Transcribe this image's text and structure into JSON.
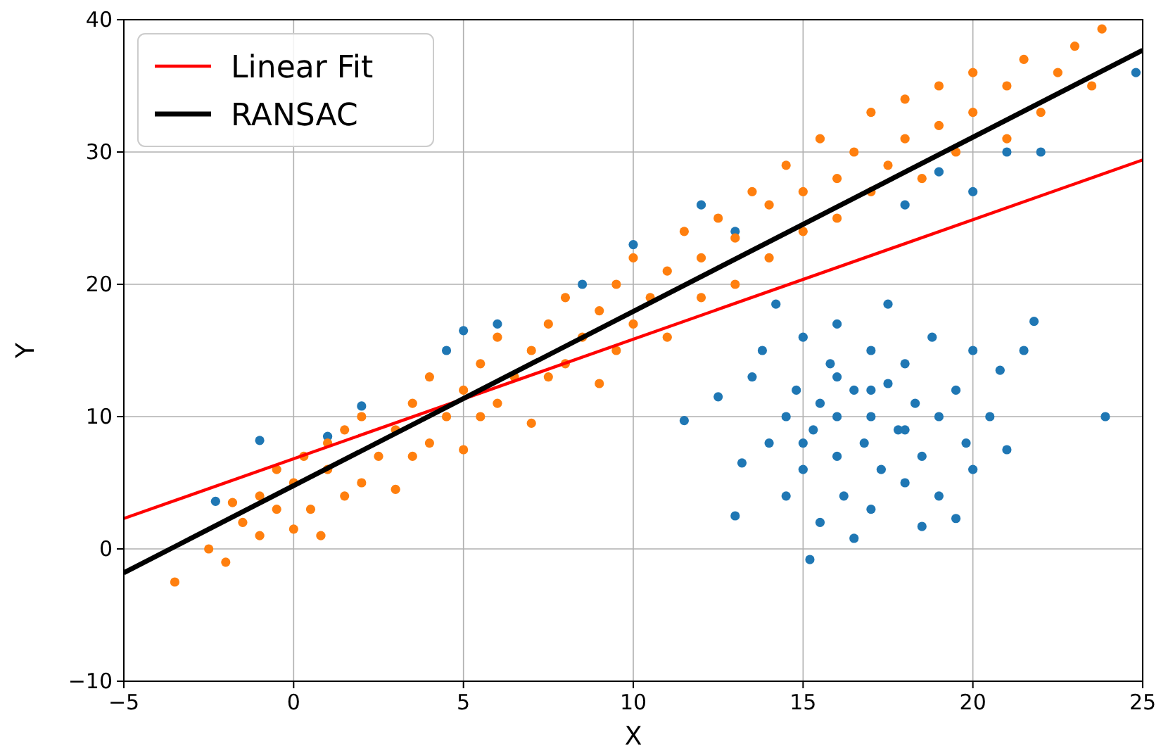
{
  "chart_data": {
    "type": "scatter",
    "xlabel": "X",
    "ylabel": "Y",
    "xlim": [
      -5,
      25
    ],
    "ylim": [
      -10,
      40
    ],
    "xticks": [
      -5,
      0,
      5,
      10,
      15,
      20,
      25
    ],
    "yticks": [
      -10,
      0,
      10,
      20,
      30,
      40
    ],
    "grid": true,
    "legend": "top left",
    "series": [
      {
        "marker": "circle",
        "color": "#1f77b4",
        "x": [
          -2.3,
          -1,
          1,
          2,
          4.5,
          5,
          6,
          8.5,
          10,
          12,
          13,
          18,
          19,
          20,
          21,
          22,
          24.8,
          23.9,
          11.5,
          12.5,
          13,
          13.2,
          13.5,
          13.8,
          14,
          14.2,
          14.5,
          14.5,
          14.8,
          15,
          15,
          15.2,
          15.3,
          15.5,
          15.5,
          15.8,
          16,
          16,
          16,
          16.2,
          16.5,
          16.5,
          16.8,
          17,
          17,
          17,
          17.3,
          17.5,
          17.5,
          17.8,
          18,
          18,
          18.3,
          18.5,
          18.5,
          18.8,
          19,
          19,
          19.5,
          19.5,
          19.8,
          20,
          20,
          20.5,
          20.8,
          21,
          21.5,
          21.8,
          17,
          16,
          18,
          15
        ],
        "values": [
          3.6,
          8.2,
          8.5,
          10.8,
          15,
          16.5,
          17,
          20,
          23,
          26,
          24,
          26,
          28.5,
          27,
          30,
          30,
          36,
          10,
          9.7,
          11.5,
          2.5,
          6.5,
          13,
          15,
          8,
          18.5,
          10,
          4,
          12,
          6,
          16,
          -0.8,
          9,
          11,
          2,
          14,
          7,
          10,
          17,
          4,
          12,
          0.8,
          8,
          15,
          10,
          3,
          6,
          12.5,
          18.5,
          9,
          5,
          14,
          11,
          1.7,
          7,
          16,
          10,
          4,
          12,
          2.3,
          8,
          15,
          6,
          10,
          13.5,
          7.5,
          15,
          17.2,
          12,
          13,
          9,
          8
        ]
      },
      {
        "marker": "circle",
        "color": "#ff7f0e",
        "x": [
          -3.5,
          -2.5,
          -2,
          -1.8,
          -1.5,
          -1,
          -1,
          -0.5,
          -0.5,
          0,
          0,
          0.3,
          0.5,
          0.8,
          1,
          1,
          1.5,
          1.5,
          2,
          2,
          2.5,
          3,
          3,
          3.5,
          3.5,
          4,
          4,
          4.5,
          5,
          5,
          5.5,
          5.5,
          6,
          6,
          6.5,
          7,
          7,
          7.5,
          7.5,
          8,
          8,
          8.5,
          9,
          9,
          9.5,
          9.5,
          10,
          10,
          10.5,
          11,
          11,
          11.5,
          12,
          12,
          12.5,
          13,
          13,
          13.5,
          14,
          14,
          14.5,
          15,
          15,
          15.5,
          16,
          16,
          16.5,
          17,
          17,
          17.5,
          18,
          18,
          18.5,
          19,
          19,
          19.5,
          20,
          20,
          21,
          21,
          21.5,
          22,
          22.5,
          23,
          23.5,
          23.8
        ],
        "values": [
          -2.5,
          0,
          -1,
          3.5,
          2,
          1,
          4,
          3,
          6,
          1.5,
          5,
          7,
          3,
          1,
          6,
          8,
          4,
          9,
          5,
          10,
          7,
          4.5,
          9,
          11,
          7,
          13,
          8,
          10,
          7.5,
          12,
          14,
          10,
          11,
          16,
          13,
          9.5,
          15,
          17,
          13,
          14,
          19,
          16,
          12.5,
          18,
          20,
          15,
          17,
          22,
          19,
          16,
          21,
          24,
          19,
          22,
          25,
          20,
          23.5,
          27,
          22,
          26,
          29,
          24,
          27,
          31,
          25,
          28,
          30,
          27,
          33,
          29,
          31,
          34,
          28,
          32,
          35,
          30,
          33,
          36,
          31,
          35,
          37,
          33,
          36,
          38,
          35,
          39.3
        ]
      },
      {
        "type": "line",
        "marker": "none",
        "name": "Linear Fit",
        "color": "#ff0000",
        "x": [
          -5,
          25
        ],
        "values": [
          2.3,
          29.4
        ]
      },
      {
        "type": "line",
        "marker": "none",
        "name": "RANSAC",
        "color": "#000000",
        "x": [
          -5,
          25
        ],
        "values": [
          -1.8,
          37.7
        ]
      }
    ]
  }
}
